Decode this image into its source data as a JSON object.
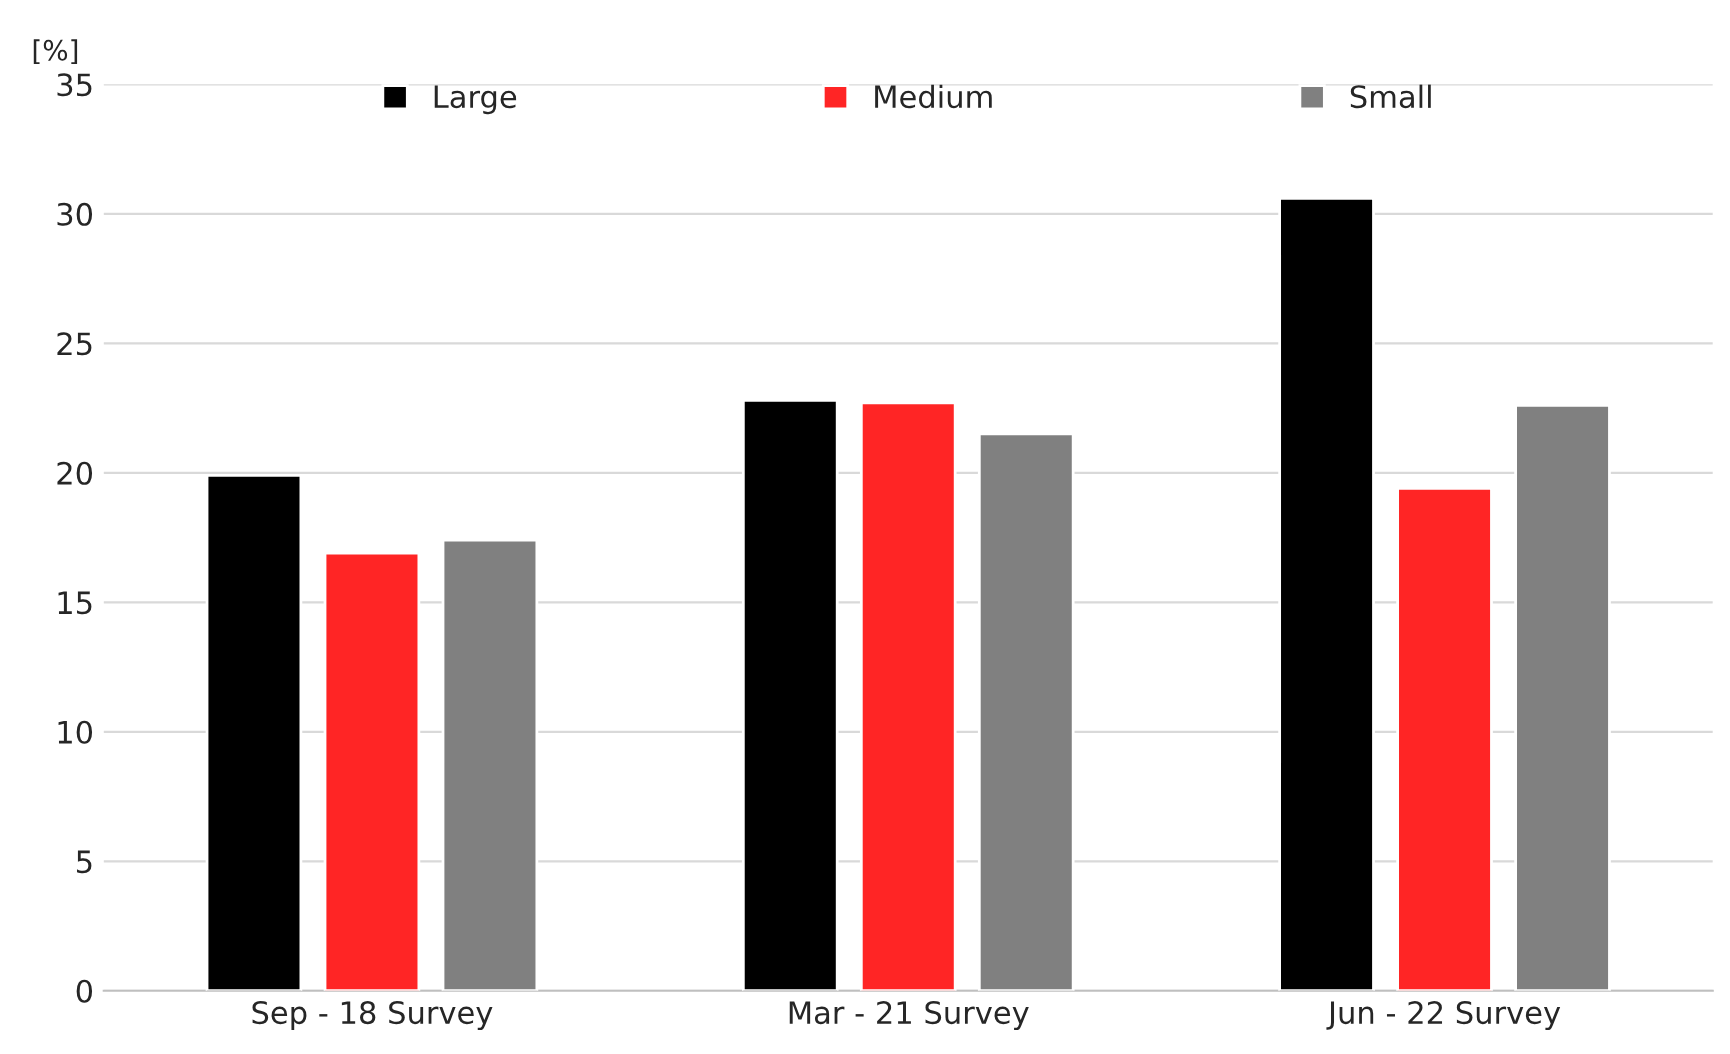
{
  "chart_data": {
    "type": "bar",
    "ylabel": "[%]",
    "categories": [
      "Sep - 18 Survey",
      "Mar - 21 Survey",
      "Jun - 22 Survey"
    ],
    "series": [
      {
        "name": "Large",
        "color": "#000000",
        "values": [
          19.9,
          22.8,
          30.6
        ]
      },
      {
        "name": "Medium",
        "color": "#ff2525",
        "values": [
          16.9,
          22.7,
          19.4
        ]
      },
      {
        "name": "Small",
        "color": "#808080",
        "values": [
          17.4,
          21.5,
          22.6
        ]
      }
    ],
    "ylim": [
      0,
      35
    ],
    "yticks": [
      0,
      5,
      10,
      15,
      20,
      25,
      30,
      35
    ],
    "grid": "y",
    "legend": "top"
  }
}
